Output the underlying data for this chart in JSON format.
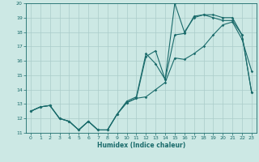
{
  "xlabel": "Humidex (Indice chaleur)",
  "xlim": [
    -0.5,
    23.5
  ],
  "ylim": [
    11,
    20
  ],
  "xticks": [
    0,
    1,
    2,
    3,
    4,
    5,
    6,
    7,
    8,
    9,
    10,
    11,
    12,
    13,
    14,
    15,
    16,
    17,
    18,
    19,
    20,
    21,
    22,
    23
  ],
  "yticks": [
    11,
    12,
    13,
    14,
    15,
    16,
    17,
    18,
    19,
    20
  ],
  "bg_color": "#cce8e4",
  "grid_color": "#aaccca",
  "line_color": "#1a6b6b",
  "line1_x": [
    0,
    1,
    2,
    3,
    4,
    5,
    6,
    7,
    8,
    9,
    10,
    11,
    12,
    13,
    14,
    15,
    16,
    17,
    18,
    19,
    20,
    21,
    22,
    23
  ],
  "line1_y": [
    12.5,
    12.8,
    12.9,
    12.0,
    11.8,
    11.2,
    11.8,
    11.2,
    11.2,
    12.3,
    13.1,
    13.4,
    13.5,
    14.0,
    14.5,
    16.2,
    16.1,
    16.5,
    17.0,
    17.8,
    18.5,
    18.7,
    17.5,
    15.3
  ],
  "line2_x": [
    0,
    1,
    2,
    3,
    4,
    5,
    6,
    7,
    8,
    9,
    10,
    11,
    12,
    13,
    14,
    15,
    16,
    17,
    18,
    19,
    20,
    21,
    22,
    23
  ],
  "line2_y": [
    12.5,
    12.8,
    12.9,
    12.0,
    11.8,
    11.2,
    11.8,
    11.2,
    11.2,
    12.3,
    13.1,
    13.4,
    16.3,
    16.7,
    14.7,
    20.0,
    18.0,
    19.0,
    19.2,
    19.0,
    18.8,
    18.8,
    17.8,
    13.8
  ],
  "line3_x": [
    0,
    1,
    2,
    3,
    4,
    5,
    6,
    7,
    8,
    9,
    10,
    11,
    12,
    13,
    14,
    15,
    16,
    17,
    18,
    19,
    20,
    21,
    22,
    23
  ],
  "line3_y": [
    12.5,
    12.8,
    12.9,
    12.0,
    11.8,
    11.2,
    11.8,
    11.2,
    11.2,
    12.3,
    13.2,
    13.5,
    16.5,
    15.8,
    14.7,
    17.8,
    17.9,
    19.1,
    19.2,
    19.2,
    19.0,
    19.0,
    17.8,
    13.8
  ]
}
